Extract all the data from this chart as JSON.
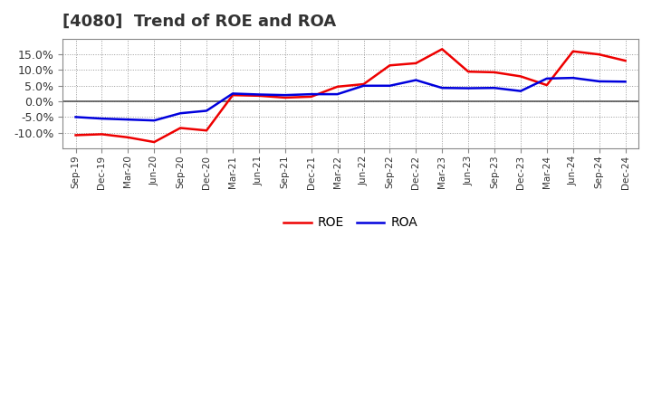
{
  "title": "[4080]  Trend of ROE and ROA",
  "labels": [
    "Sep-19",
    "Dec-19",
    "Mar-20",
    "Jun-20",
    "Sep-20",
    "Dec-20",
    "Mar-21",
    "Jun-21",
    "Sep-21",
    "Dec-21",
    "Mar-22",
    "Jun-22",
    "Sep-22",
    "Dec-22",
    "Mar-23",
    "Jun-23",
    "Sep-23",
    "Dec-23",
    "Mar-24",
    "Jun-24",
    "Sep-24",
    "Dec-24"
  ],
  "ROE": [
    -10.8,
    -10.5,
    -11.5,
    -13.0,
    -8.5,
    -9.3,
    2.0,
    1.8,
    1.2,
    1.5,
    4.7,
    5.5,
    11.5,
    12.2,
    16.7,
    9.5,
    9.3,
    8.0,
    5.2,
    16.0,
    15.0,
    13.0
  ],
  "ROA": [
    -5.0,
    -5.5,
    -5.8,
    -6.1,
    -3.8,
    -3.0,
    2.5,
    2.2,
    2.0,
    2.3,
    2.3,
    5.0,
    5.0,
    6.8,
    4.3,
    4.2,
    4.3,
    3.3,
    7.3,
    7.5,
    6.4,
    6.3
  ],
  "roe_color": "#ee0000",
  "roa_color": "#0000dd",
  "background_color": "#ffffff",
  "plot_bg_color": "#ffffff",
  "grid_color": "#999999",
  "zero_line_color": "#555555",
  "ylim": [
    -15,
    20
  ],
  "yticks": [
    -10.0,
    -5.0,
    0.0,
    5.0,
    10.0,
    15.0
  ],
  "line_width": 1.8,
  "title_fontsize": 13,
  "title_color": "#333333",
  "tick_label_color": "#333333",
  "legend_fontsize": 10
}
